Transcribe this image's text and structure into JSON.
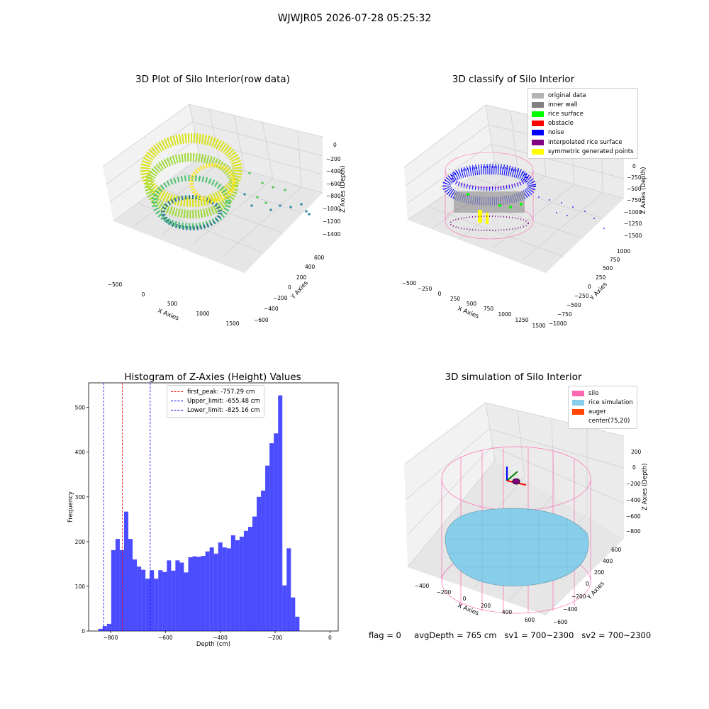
{
  "suptitle": "WJWJR05 2026-07-28 05:25:32",
  "footer": {
    "flag": "flag = 0",
    "avg_depth": "avgDepth = 765 cm",
    "sv1": "sv1 = 700~2300",
    "sv2": "sv2 = 700~2300"
  },
  "panels": {
    "raw": {
      "title": "3D Plot of Silo Interior(row data)",
      "xlabel": "X Axies",
      "ylabel": "Y Axies",
      "zlabel": "Z Axies (Depth)",
      "xticks": [
        "−500",
        "0",
        "500",
        "1000",
        "1500"
      ],
      "yticks": [
        "−600",
        "−400",
        "−200",
        "0",
        "200",
        "400",
        "600"
      ],
      "zticks": [
        "0",
        "−200",
        "−400",
        "−600",
        "−800",
        "−1000",
        "−1200",
        "−1400"
      ]
    },
    "classify": {
      "title": "3D classify of Silo Interior",
      "xlabel": "X Axies",
      "ylabel": "Y Axies",
      "zlabel": "Z Axies (Depth)",
      "xticks": [
        "−500",
        "−250",
        "0",
        "250",
        "500",
        "750",
        "1000",
        "1250",
        "1500"
      ],
      "yticks": [
        "−1000",
        "−750",
        "−500",
        "−250",
        "0",
        "250",
        "500",
        "750",
        "1000"
      ],
      "zticks": [
        "250",
        "0",
        "−250",
        "−500",
        "−750",
        "−1000",
        "−1250",
        "−1500"
      ],
      "legend": [
        {
          "label": "original data",
          "color": "#b3b3b3"
        },
        {
          "label": "inner wall",
          "color": "#808080"
        },
        {
          "label": "rice surface",
          "color": "#00ff00"
        },
        {
          "label": "obstacle",
          "color": "#ff0000"
        },
        {
          "label": "noise",
          "color": "#0000ff"
        },
        {
          "label": "interpolated rice surface",
          "color": "#800080"
        },
        {
          "label": "symmetric generated points",
          "color": "#ffff00"
        }
      ]
    },
    "simulation": {
      "title": "3D simulation of Silo Interior",
      "xlabel": "X Axies",
      "ylabel": "Y Axies",
      "zlabel": "Z Axies (Depth)",
      "xticks": [
        "−400",
        "−200",
        "0",
        "200",
        "400",
        "600"
      ],
      "yticks": [
        "−600",
        "−400",
        "−200",
        "0",
        "200",
        "400",
        "600"
      ],
      "zticks": [
        "200",
        "0",
        "−200",
        "−400",
        "−600",
        "−800"
      ],
      "legend": [
        {
          "label": "silo",
          "color": "#ff69b4"
        },
        {
          "label": "rice simulation",
          "color": "#87ceeb"
        },
        {
          "label": "auger",
          "color": "#ff4500"
        },
        {
          "label": "center(75,20)",
          "color": ""
        }
      ]
    }
  },
  "chart_data": {
    "type": "bar",
    "title": "Histogram of Z-Axies (Height) Values",
    "xlabel": "Depth (cm)",
    "ylabel": "Frequency",
    "xlim": [
      -880,
      30
    ],
    "ylim": [
      0,
      555
    ],
    "xticks": [
      -800,
      -600,
      -400,
      -200,
      0
    ],
    "yticks": [
      0,
      100,
      200,
      300,
      400,
      500
    ],
    "bin_width": 15.6,
    "bin_start": -860,
    "values": [
      0,
      5,
      11,
      16,
      181,
      206,
      181,
      267,
      206,
      160,
      144,
      137,
      117,
      136,
      117,
      136,
      132,
      158,
      135,
      158,
      153,
      131,
      165,
      167,
      166,
      168,
      178,
      187,
      173,
      198,
      187,
      185,
      214,
      203,
      211,
      224,
      233,
      256,
      300,
      314,
      370,
      420,
      442,
      527,
      102,
      185,
      75,
      32
    ],
    "color": "#0000ff",
    "lines": [
      {
        "name": "first_peak: -757.29 cm",
        "x": -757.29,
        "color": "#ff0000"
      },
      {
        "name": "Upper_limit: -655.48 cm",
        "x": -655.48,
        "color": "#0000ff"
      },
      {
        "name": "Lower_limit: -825.16 cm",
        "x": -825.16,
        "color": "#0000ff"
      }
    ],
    "legend_position": "top-center"
  }
}
